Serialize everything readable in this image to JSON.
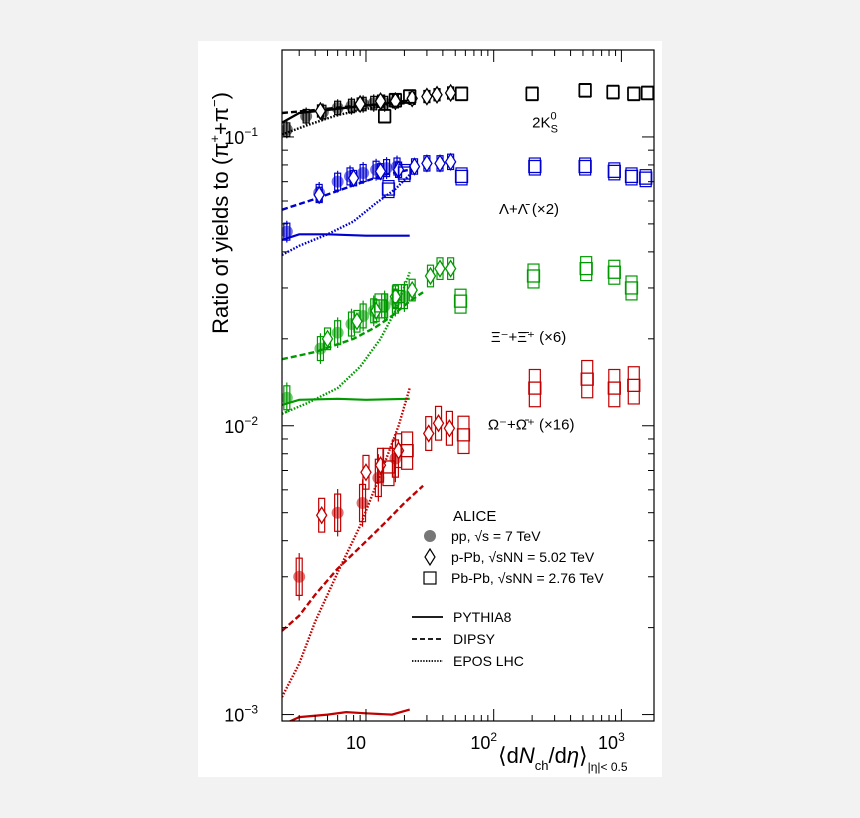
{
  "chart_data": {
    "type": "scatter",
    "xscale": "log",
    "yscale": "log",
    "xlim": [
      2.2,
      1800
    ],
    "ylim": [
      0.00095,
      0.2
    ],
    "ylabel": "Ratio of yields to (π⁺+π⁻)",
    "xlabel": "⟨dNch/dη⟩|η|< 0.5",
    "y_ticks": [
      {
        "v": 0.1,
        "text": "10",
        "exp": "−1"
      },
      {
        "v": 0.01,
        "text": "10",
        "exp": "−2"
      },
      {
        "v": 0.001,
        "text": "10",
        "exp": "−3"
      }
    ],
    "x_ticks": [
      {
        "v": 10,
        "text": "10",
        "exp": ""
      },
      {
        "v": 100,
        "text": "10",
        "exp": "2"
      },
      {
        "v": 1000,
        "text": "10",
        "exp": "3"
      }
    ],
    "legend": {
      "header": "ALICE",
      "systems": [
        {
          "marker": "circle",
          "text": "pp, √s = 7 TeV"
        },
        {
          "marker": "diamond",
          "text": "p-Pb, √sNN = 5.02 TeV"
        },
        {
          "marker": "square",
          "text": "Pb-Pb, √sNN = 2.76 TeV"
        }
      ],
      "models": [
        {
          "style": "solid",
          "text": "PYTHIA8"
        },
        {
          "style": "dashed",
          "text": "DIPSY"
        },
        {
          "style": "dotted",
          "text": "EPOS LHC"
        }
      ]
    },
    "series": [
      {
        "name": "2K0S",
        "label": "2K",
        "label_sup": "0",
        "label_sub": "S",
        "color": "#000000",
        "pp": [
          [
            2.4,
            0.106
          ],
          [
            3.4,
            0.118
          ],
          [
            4.6,
            0.122
          ],
          [
            6,
            0.126
          ],
          [
            7.7,
            0.128
          ],
          [
            9.5,
            0.13
          ],
          [
            11.5,
            0.131
          ],
          [
            14,
            0.131
          ],
          [
            17,
            0.133
          ]
        ],
        "ppb": [
          [
            4.4,
            0.123
          ],
          [
            9,
            0.13
          ],
          [
            13,
            0.133
          ],
          [
            17,
            0.133
          ],
          [
            23,
            0.136
          ],
          [
            30,
            0.138
          ],
          [
            36,
            0.14
          ],
          [
            46,
            0.142
          ]
        ],
        "pbpb": [
          [
            14,
            0.118
          ],
          [
            17,
            0.134
          ],
          [
            22,
            0.138
          ],
          [
            56,
            0.141
          ],
          [
            200,
            0.141
          ],
          [
            520,
            0.145
          ],
          [
            860,
            0.143
          ],
          [
            1250,
            0.141
          ],
          [
            1600,
            0.142
          ]
        ],
        "pythia": [
          [
            2.2,
            0.112
          ],
          [
            3,
            0.121
          ],
          [
            5,
            0.124
          ],
          [
            8,
            0.127
          ],
          [
            13,
            0.13
          ],
          [
            22,
            0.134
          ]
        ],
        "dipsy": [
          [
            2.2,
            0.121
          ],
          [
            4,
            0.124
          ],
          [
            8,
            0.128
          ],
          [
            14,
            0.13
          ],
          [
            22,
            0.131
          ]
        ],
        "epos": [
          [
            2.2,
            0.102
          ],
          [
            3.5,
            0.11
          ],
          [
            6,
            0.119
          ],
          [
            10,
            0.125
          ],
          [
            16,
            0.13
          ],
          [
            22,
            0.133
          ]
        ]
      },
      {
        "name": "Lambda",
        "label": "Λ+Λ̄ (×2)",
        "color": "#0000d0",
        "pp": [
          [
            2.4,
            0.047
          ],
          [
            4.3,
            0.064
          ],
          [
            6,
            0.07
          ],
          [
            7.5,
            0.073
          ],
          [
            9.5,
            0.075
          ],
          [
            12,
            0.077
          ],
          [
            14.5,
            0.078
          ],
          [
            17.5,
            0.079
          ]
        ],
        "ppb": [
          [
            4.3,
            0.063
          ],
          [
            8,
            0.072
          ],
          [
            13,
            0.076
          ],
          [
            18,
            0.077
          ],
          [
            24,
            0.079
          ],
          [
            30,
            0.081
          ],
          [
            38,
            0.081
          ],
          [
            46,
            0.082
          ]
        ],
        "pbpb": [
          [
            15,
            0.066
          ],
          [
            20,
            0.075
          ],
          [
            56,
            0.073
          ],
          [
            210,
            0.079
          ],
          [
            520,
            0.079
          ],
          [
            880,
            0.076
          ],
          [
            1200,
            0.073
          ],
          [
            1550,
            0.072
          ]
        ],
        "pythia": [
          [
            2.2,
            0.044
          ],
          [
            3,
            0.046
          ],
          [
            5,
            0.046
          ],
          [
            10,
            0.0455
          ],
          [
            22,
            0.0455
          ]
        ],
        "dipsy": [
          [
            2.2,
            0.056
          ],
          [
            4,
            0.061
          ],
          [
            8,
            0.068
          ],
          [
            14,
            0.074
          ],
          [
            22,
            0.077
          ]
        ],
        "epos": [
          [
            2.2,
            0.039
          ],
          [
            3,
            0.042
          ],
          [
            5,
            0.046
          ],
          [
            8,
            0.051
          ],
          [
            12,
            0.059
          ],
          [
            17,
            0.066
          ],
          [
            22,
            0.074
          ]
        ]
      },
      {
        "name": "Xi",
        "label": "Ξ⁻+Ξ̄⁺ (×6)",
        "color": "#009a00",
        "pp": [
          [
            2.4,
            0.0125
          ],
          [
            4.4,
            0.0185
          ],
          [
            6,
            0.021
          ],
          [
            7.7,
            0.0225
          ],
          [
            9.5,
            0.024
          ],
          [
            11.5,
            0.025
          ],
          [
            14,
            0.026
          ],
          [
            17,
            0.027
          ],
          [
            20,
            0.028
          ]
        ],
        "ppb": [
          [
            5,
            0.02
          ],
          [
            8.5,
            0.023
          ],
          [
            12,
            0.025
          ],
          [
            17,
            0.028
          ],
          [
            23,
            0.0295
          ],
          [
            32,
            0.033
          ],
          [
            38,
            0.035
          ],
          [
            46,
            0.035
          ]
        ],
        "pbpb": [
          [
            13,
            0.026
          ],
          [
            18,
            0.028
          ],
          [
            55,
            0.027
          ],
          [
            205,
            0.033
          ],
          [
            530,
            0.035
          ],
          [
            880,
            0.034
          ],
          [
            1200,
            0.03
          ]
        ],
        "pythia": [
          [
            2.2,
            0.0118
          ],
          [
            3,
            0.0123
          ],
          [
            6,
            0.0124
          ],
          [
            10,
            0.0123
          ],
          [
            22,
            0.0124
          ]
        ],
        "dipsy": [
          [
            2.2,
            0.017
          ],
          [
            4,
            0.018
          ],
          [
            8,
            0.02
          ],
          [
            12,
            0.022
          ],
          [
            16,
            0.024
          ],
          [
            22,
            0.027
          ],
          [
            28,
            0.029
          ]
        ],
        "epos": [
          [
            2.2,
            0.011
          ],
          [
            3.5,
            0.012
          ],
          [
            6,
            0.0135
          ],
          [
            9,
            0.016
          ],
          [
            13,
            0.02
          ],
          [
            17,
            0.025
          ],
          [
            22,
            0.034
          ]
        ]
      },
      {
        "name": "Omega",
        "label": "Ω⁻+Ω̄⁺ (×16)",
        "color": "#c00000",
        "pp": [
          [
            3,
            0.003
          ],
          [
            6,
            0.005
          ],
          [
            9.4,
            0.0054
          ],
          [
            12.5,
            0.0066
          ],
          [
            17,
            0.0077
          ]
        ],
        "ppb": [
          [
            4.5,
            0.0049
          ],
          [
            10,
            0.0069
          ],
          [
            13,
            0.0073
          ],
          [
            18,
            0.0082
          ],
          [
            31,
            0.0094
          ],
          [
            37,
            0.0102
          ],
          [
            45,
            0.0098
          ]
        ],
        "pbpb": [
          [
            15,
            0.0072
          ],
          [
            21,
            0.0082
          ],
          [
            58,
            0.0093
          ],
          [
            210,
            0.0135
          ],
          [
            540,
            0.0145
          ],
          [
            880,
            0.0135
          ],
          [
            1250,
            0.0138
          ]
        ],
        "pythia": [
          [
            2.2,
            0.00092
          ],
          [
            3,
            0.00098
          ],
          [
            5,
            0.001
          ],
          [
            7,
            0.00102
          ],
          [
            10,
            0.00101
          ],
          [
            16,
            0.001
          ],
          [
            22,
            0.00104
          ]
        ],
        "dipsy": [
          [
            2.2,
            0.00195
          ],
          [
            3,
            0.0022
          ],
          [
            4,
            0.0026
          ],
          [
            6,
            0.0032
          ],
          [
            9,
            0.0038
          ],
          [
            14,
            0.0046
          ],
          [
            20,
            0.0054
          ],
          [
            28,
            0.0062
          ]
        ],
        "epos": [
          [
            2.2,
            0.00115
          ],
          [
            3,
            0.0015
          ],
          [
            4,
            0.0021
          ],
          [
            6,
            0.0031
          ],
          [
            9,
            0.0045
          ],
          [
            13,
            0.0068
          ],
          [
            18,
            0.01
          ],
          [
            22,
            0.0135
          ]
        ]
      }
    ]
  }
}
